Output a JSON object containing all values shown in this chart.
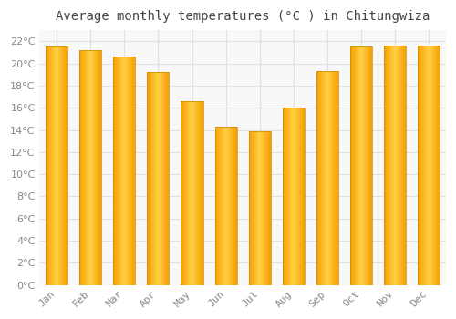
{
  "title": "Average monthly temperatures (°C ) in Chitungwiza",
  "months": [
    "Jan",
    "Feb",
    "Mar",
    "Apr",
    "May",
    "Jun",
    "Jul",
    "Aug",
    "Sep",
    "Oct",
    "Nov",
    "Dec"
  ],
  "values": [
    21.5,
    21.2,
    20.6,
    19.2,
    16.6,
    14.3,
    13.9,
    16.0,
    19.3,
    21.5,
    21.6,
    21.6
  ],
  "bar_color_center": "#FFD045",
  "bar_color_edge": "#F5A000",
  "background_color": "#FFFFFF",
  "plot_bg_color": "#F8F8F8",
  "grid_color": "#E0E0E0",
  "ylim": [
    0,
    23
  ],
  "ytick_step": 2,
  "title_fontsize": 10,
  "tick_fontsize": 8,
  "tick_color": "#888888",
  "title_color": "#444444",
  "bar_width": 0.65
}
